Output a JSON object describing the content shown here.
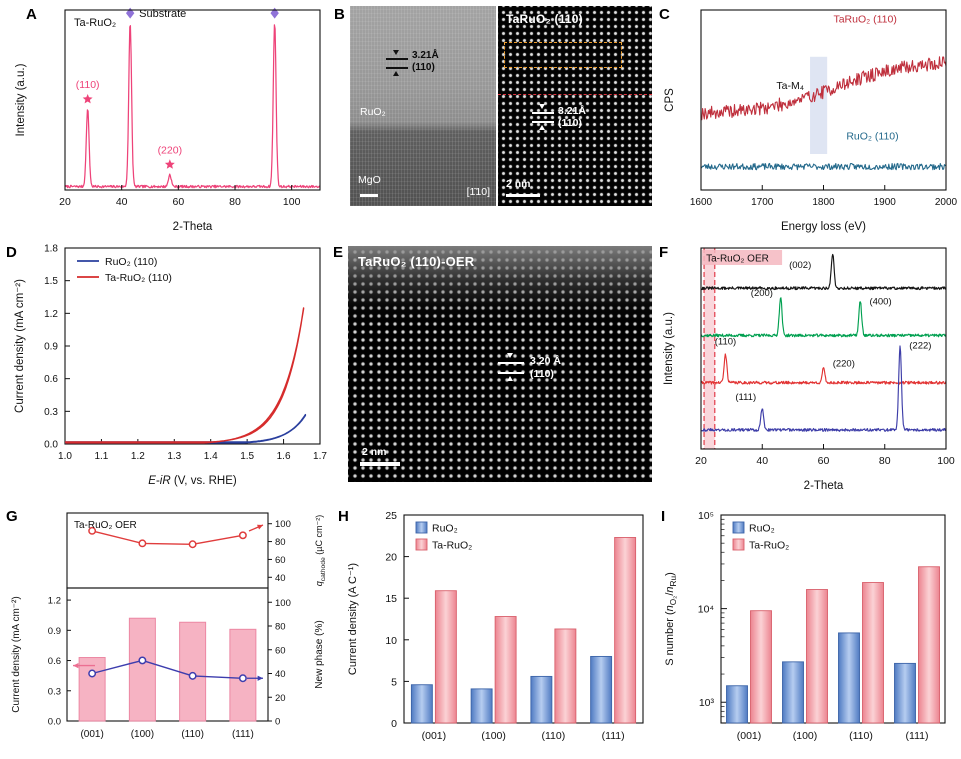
{
  "panels": {
    "A": {
      "letter": "A"
    },
    "B": {
      "letter": "B",
      "left": {
        "material_top": "RuO₂",
        "material_bottom": "MgO",
        "zone_axis": "[1̄10]",
        "d_spacing": "3.21Å",
        "plane": "(110)"
      },
      "right": {
        "title": "TaRuO₂ (110)",
        "d_spacing": "3.21Å",
        "plane": "(110)",
        "scale_bar": "2 nm"
      }
    },
    "C": {
      "letter": "C"
    },
    "D": {
      "letter": "D"
    },
    "E": {
      "letter": "E",
      "title": "TaRuO₂ (110)-OER",
      "d_spacing": "3.20 Å",
      "plane": "(110)",
      "scale_bar": "2 nm"
    },
    "F": {
      "letter": "F"
    },
    "G": {
      "letter": "G"
    },
    "H": {
      "letter": "H"
    },
    "I": {
      "letter": "I"
    }
  },
  "chart_data": [
    {
      "panel": "A",
      "type": "line",
      "kind": "xrd",
      "sample_label": "Ta-RuO₂",
      "xlabel": "2-Theta",
      "ylabel": "Intensity (a.u.)",
      "xlim": [
        20,
        110
      ],
      "xticks": [
        20,
        40,
        60,
        80,
        100
      ],
      "line_color": "#ee4379",
      "marker_star_color": "#ee4379",
      "marker_diamond_color": "#8f72d8",
      "peaks": [
        {
          "two_theta": 28,
          "rel_intensity": 0.45,
          "label": "(110)",
          "marker": "star"
        },
        {
          "two_theta": 43,
          "rel_intensity": 0.95,
          "label": "Substrate",
          "marker": "diamond"
        },
        {
          "two_theta": 57,
          "rel_intensity": 0.07,
          "label": "(220)",
          "marker": "star"
        },
        {
          "two_theta": 94,
          "rel_intensity": 0.95,
          "label": "",
          "marker": "diamond"
        }
      ]
    },
    {
      "panel": "C",
      "type": "line",
      "kind": "eels",
      "xlabel": "Energy loss (eV)",
      "ylabel": "CPS",
      "xlim": [
        1600,
        2000
      ],
      "xticks": [
        1600,
        1700,
        1800,
        1900,
        2000
      ],
      "series": [
        {
          "name": "TaRuO₂ (110)",
          "color": "#bf2f3c",
          "baseline": 0.42,
          "step_rise": 0.3,
          "step_center": 1820,
          "step_width": 60,
          "noise": 0.075
        },
        {
          "name": "RuO₂ (110)",
          "color": "#256a8c",
          "baseline": 0.13,
          "step_rise": 0,
          "step_center": 0,
          "step_width": 1,
          "noise": 0.035
        }
      ],
      "annotation": {
        "label": "Ta-M₄",
        "band_x": [
          1778,
          1806
        ],
        "band_color": "#c5d0ea"
      }
    },
    {
      "panel": "D",
      "type": "line",
      "kind": "cv",
      "xlabel_segments": [
        {
          "t": "E",
          "i": true
        },
        {
          "t": "-"
        },
        {
          "t": "iR",
          "i": true
        },
        {
          "t": " (V, vs. RHE)"
        }
      ],
      "ylabel": "Current density (mA cm⁻²)",
      "xlim": [
        1.0,
        1.7
      ],
      "ylim": [
        0,
        1.8
      ],
      "xticks": [
        1.0,
        1.1,
        1.2,
        1.3,
        1.4,
        1.5,
        1.6,
        1.7
      ],
      "yticks": [
        0.0,
        0.3,
        0.6,
        0.9,
        1.2,
        1.5,
        1.8
      ],
      "series": [
        {
          "name": "RuO₂ (110)",
          "color": "#2a3f9e",
          "onset_V": 1.5,
          "tafel_b": 0.05,
          "peak_V": 1.66,
          "peak_mA": 0.27,
          "hyst": 0.008
        },
        {
          "name": "Ta-RuO₂ (110)",
          "color": "#d62c2c",
          "onset_V": 1.4,
          "tafel_b": 0.055,
          "peak_V": 1.655,
          "peak_mA": 1.25,
          "hyst": 0.018
        }
      ]
    },
    {
      "panel": "F",
      "type": "line",
      "kind": "xrd-stack",
      "sample_label": "Ta-RuO₂ OER",
      "xlabel": "2-Theta",
      "ylabel": "Intensity (a.u.)",
      "xlim": [
        20,
        100
      ],
      "xticks": [
        20,
        40,
        60,
        80,
        100
      ],
      "highlight_band": {
        "x": [
          21,
          24.5
        ],
        "color": "#f5b7c0",
        "edge_color": "#e23b49"
      },
      "traces": [
        {
          "color": "#151515",
          "baseline": 0.8,
          "peaks": [
            {
              "two_theta": 63,
              "height": 0.17,
              "label": "(002)",
              "label_x": 56,
              "label_f": 0.9,
              "anchor": "end"
            }
          ]
        },
        {
          "color": "#00a050",
          "baseline": 0.565,
          "peaks": [
            {
              "two_theta": 46,
              "height": 0.19,
              "label": "(200)",
              "label_x": 43.5,
              "label_f": 0.76,
              "anchor": "end"
            },
            {
              "two_theta": 72,
              "height": 0.17,
              "label": "(400)",
              "label_x": 75,
              "label_f": 0.72,
              "anchor": "start"
            }
          ]
        },
        {
          "color": "#e23333",
          "baseline": 0.33,
          "peaks": [
            {
              "two_theta": 28,
              "height": 0.14,
              "label": "(110)",
              "label_x": 28,
              "label_f": 0.52,
              "anchor": "middle"
            },
            {
              "two_theta": 60,
              "height": 0.07,
              "label": "(220)",
              "label_x": 63,
              "label_f": 0.41,
              "anchor": "start"
            }
          ]
        },
        {
          "color": "#3d3da8",
          "baseline": 0.095,
          "peaks": [
            {
              "two_theta": 40,
              "height": 0.11,
              "label": "(111)",
              "label_x": 38,
              "label_f": 0.245,
              "anchor": "end"
            },
            {
              "two_theta": 85,
              "height": 0.42,
              "label": "(222)",
              "label_x": 88,
              "label_f": 0.5,
              "anchor": "start"
            }
          ]
        }
      ]
    },
    {
      "panel": "G",
      "type": "line+bar",
      "kind": "dual",
      "sample_label": "Ta-RuO₂ OER",
      "categories": [
        "(001)",
        "(100)",
        "(110)",
        "(111)"
      ],
      "top": {
        "ylabel_segments": [
          {
            "t": "q",
            "i": true
          },
          {
            "t": "cathode",
            "sub": true
          },
          {
            "t": " (µC cm⁻²)"
          }
        ],
        "yticks": [
          40,
          60,
          80,
          100
        ],
        "ylim": [
          28,
          112
        ],
        "values": [
          92,
          78,
          77,
          87
        ],
        "color": "#e03c3c"
      },
      "bottom_bars": {
        "ylabel": "Current density (mA cm⁻²)",
        "yticks": [
          0.0,
          0.3,
          0.6,
          0.9,
          1.2
        ],
        "ylim": [
          0,
          1.32
        ],
        "values": [
          0.63,
          1.02,
          0.98,
          0.91
        ],
        "color": "#f6b3c3"
      },
      "bottom_line": {
        "ylabel": "New phase (%)",
        "yticks": [
          0,
          20,
          40,
          60,
          80,
          100
        ],
        "ylim": [
          0,
          112
        ],
        "values": [
          40,
          51,
          38,
          36
        ],
        "color": "#3d3dae"
      }
    },
    {
      "panel": "H",
      "type": "bar",
      "categories": [
        "(001)",
        "(100)",
        "(110)",
        "(111)"
      ],
      "ylabel": "Current density (A C⁻¹)",
      "ylim": [
        0,
        25
      ],
      "yticks": [
        0,
        5,
        10,
        15,
        20,
        25
      ],
      "series": [
        {
          "name": "RuO₂",
          "color": "#5b87c8",
          "values": [
            4.6,
            4.1,
            5.6,
            8.0
          ]
        },
        {
          "name": "Ta-RuO₂",
          "color": "#ee8b96",
          "values": [
            15.9,
            12.8,
            11.3,
            22.3
          ]
        }
      ]
    },
    {
      "panel": "I",
      "type": "bar",
      "kind": "bar-log",
      "categories": [
        "(001)",
        "(100)",
        "(110)",
        "(111)"
      ],
      "ylabel_segments": [
        {
          "t": "S number ("
        },
        {
          "t": "n",
          "i": true
        },
        {
          "t": "O₂",
          "sub": true
        },
        {
          "t": "/"
        },
        {
          "t": "n",
          "i": true
        },
        {
          "t": "Ru",
          "sub": true
        },
        {
          "t": ")"
        }
      ],
      "ylim": [
        600,
        100000
      ],
      "yticks_log": [
        "10³",
        "10⁴",
        "10⁵"
      ],
      "series": [
        {
          "name": "RuO₂",
          "color": "#5b87c8",
          "values": [
            1500,
            2700,
            5500,
            2600
          ]
        },
        {
          "name": "Ta-RuO₂",
          "color": "#ee8b96",
          "values": [
            9500,
            16000,
            19000,
            28000
          ]
        }
      ]
    }
  ]
}
